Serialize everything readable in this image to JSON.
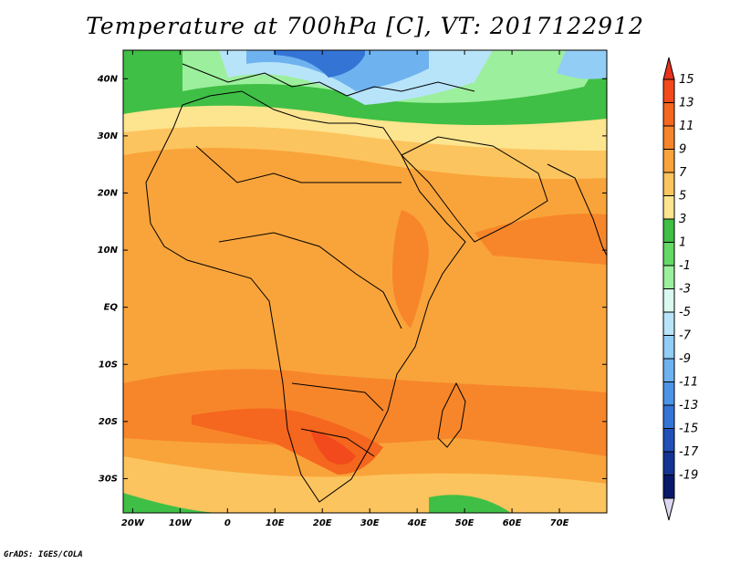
{
  "title": "Temperature at 700hPa [C], VT: 2017122912",
  "credit": "GrADS: IGES/COLA",
  "map": {
    "region": "Africa",
    "lon_range": [
      -22,
      80
    ],
    "lat_range": [
      -36,
      45
    ],
    "lon_ticks": [
      {
        "value": -20,
        "label": "20W"
      },
      {
        "value": -10,
        "label": "10W"
      },
      {
        "value": 0,
        "label": "0"
      },
      {
        "value": 10,
        "label": "10E"
      },
      {
        "value": 20,
        "label": "20E"
      },
      {
        "value": 30,
        "label": "30E"
      },
      {
        "value": 40,
        "label": "40E"
      },
      {
        "value": 50,
        "label": "50E"
      },
      {
        "value": 60,
        "label": "60E"
      },
      {
        "value": 70,
        "label": "70E"
      }
    ],
    "lat_ticks": [
      {
        "value": 40,
        "label": "40N"
      },
      {
        "value": 30,
        "label": "30N"
      },
      {
        "value": 20,
        "label": "20N"
      },
      {
        "value": 10,
        "label": "10N"
      },
      {
        "value": 0,
        "label": "EQ"
      },
      {
        "value": -10,
        "label": "10S"
      },
      {
        "value": -20,
        "label": "20S"
      },
      {
        "value": -30,
        "label": "30S"
      }
    ]
  },
  "colorbar": {
    "levels": [
      15,
      13,
      11,
      9,
      7,
      5,
      3,
      1,
      -1,
      -3,
      -5,
      -7,
      -9,
      -11,
      -13,
      -15,
      -17,
      -19
    ],
    "labels": [
      "15",
      "13",
      "11",
      "9",
      "7",
      "5",
      "3",
      "1",
      "-1",
      "-3",
      "-5",
      "-7",
      "-9",
      "-11",
      "-13",
      "-15",
      "-17",
      "-19"
    ],
    "top_color": "#e8321e",
    "bottom_color": "#dcd8f0",
    "colors": [
      "#f24a1d",
      "#f5661e",
      "#f7862a",
      "#f9a43a",
      "#fcc45e",
      "#fde48e",
      "#3fbf45",
      "#65d965",
      "#9cef9c",
      "#d9f8f0",
      "#b7e4f8",
      "#92cdf5",
      "#6fb2f0",
      "#4c94e7",
      "#3474d5",
      "#2050b8",
      "#143494",
      "#08186a"
    ]
  }
}
